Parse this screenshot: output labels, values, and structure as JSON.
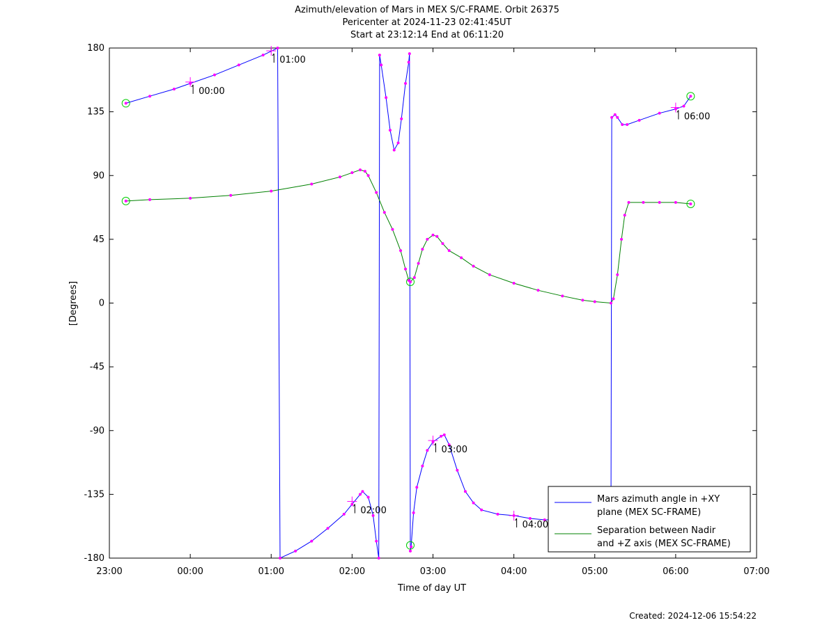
{
  "chart_data": {
    "type": "line",
    "title": [
      "Azimuth/elevation of Mars in MEX S/C-FRAME.  Orbit 26375",
      "Pericenter at 2024-11-23 02:41:45UT",
      "Start at 23:12:14 End at 06:11:20"
    ],
    "xlabel": "Time of day UT",
    "ylabel": "[Degrees]",
    "x_unit": "hours since 23:00 UT",
    "xlim": [
      0,
      8
    ],
    "ylim": [
      -180,
      180
    ],
    "x_tick_labels": [
      "23:00",
      "00:00",
      "01:00",
      "02:00",
      "03:00",
      "04:00",
      "05:00",
      "06:00",
      "07:00"
    ],
    "y_ticks": [
      180,
      135,
      90,
      45,
      0,
      -45,
      -90,
      -135,
      -180
    ],
    "legend": {
      "placement": "bottom-right",
      "entries": [
        {
          "label_lines": [
            "Mars azimuth angle in +XY",
            "plane (MEX SC-FRAME)"
          ],
          "color": "#0000ff"
        },
        {
          "label_lines": [
            "Separation between Nadir",
            "and +Z axis (MEX SC-FRAME)"
          ],
          "color": "#008000"
        }
      ]
    },
    "hour_markers": [
      {
        "label": "00:00",
        "x": 1.0,
        "y": 156
      },
      {
        "label": "01:00",
        "x": 2.0,
        "y": 178
      },
      {
        "label": "02:00",
        "x": 3.0,
        "y": -140
      },
      {
        "label": "03:00",
        "x": 4.0,
        "y": -97
      },
      {
        "label": "04:00",
        "x": 5.0,
        "y": -150
      },
      {
        "label": "06:00",
        "x": 7.0,
        "y": 138
      }
    ],
    "series": [
      {
        "name": "Mars azimuth angle in +XY plane (MEX SC-FRAME)",
        "color": "#0000ff",
        "segments": [
          [
            [
              0.204,
              141
            ],
            [
              0.5,
              146
            ],
            [
              0.8,
              151
            ],
            [
              1.0,
              155
            ],
            [
              1.3,
              161
            ],
            [
              1.6,
              168
            ],
            [
              1.9,
              175
            ],
            [
              2.08,
              180
            ]
          ],
          [
            [
              2.11,
              -180
            ],
            [
              2.3,
              -175
            ],
            [
              2.5,
              -168
            ],
            [
              2.7,
              -159
            ],
            [
              2.9,
              -149
            ],
            [
              3.0,
              -142
            ],
            [
              3.1,
              -135
            ],
            [
              3.13,
              -133
            ],
            [
              3.2,
              -137
            ],
            [
              3.26,
              -150
            ],
            [
              3.3,
              -168
            ],
            [
              3.33,
              -180
            ]
          ],
          [
            [
              3.34,
              175
            ],
            [
              3.36,
              168
            ],
            [
              3.42,
              145
            ],
            [
              3.47,
              122
            ],
            [
              3.52,
              108
            ],
            [
              3.57,
              113
            ],
            [
              3.61,
              130
            ],
            [
              3.66,
              155
            ],
            [
              3.7,
              170
            ],
            [
              3.71,
              176
            ]
          ],
          [
            [
              3.72,
              -175
            ],
            [
              3.73,
              -172
            ],
            [
              3.76,
              -148
            ],
            [
              3.8,
              -130
            ],
            [
              3.87,
              -115
            ],
            [
              3.93,
              -104
            ],
            [
              4.0,
              -98
            ],
            [
              4.1,
              -94
            ],
            [
              4.14,
              -93
            ],
            [
              4.2,
              -100
            ],
            [
              4.3,
              -118
            ],
            [
              4.4,
              -133
            ],
            [
              4.5,
              -141
            ],
            [
              4.6,
              -146
            ],
            [
              4.8,
              -149
            ],
            [
              5.0,
              -150
            ],
            [
              5.2,
              -152
            ],
            [
              5.38,
              -153
            ],
            [
              5.6,
              -153
            ],
            [
              5.8,
              -153
            ],
            [
              6.0,
              -152
            ],
            [
              6.2,
              -150
            ]
          ],
          [
            [
              6.21,
              131
            ],
            [
              6.25,
              133
            ],
            [
              6.28,
              131
            ],
            [
              6.34,
              126
            ],
            [
              6.4,
              126
            ],
            [
              6.55,
              129
            ],
            [
              6.8,
              134
            ],
            [
              7.0,
              137
            ],
            [
              7.1,
              139
            ],
            [
              7.185,
              146
            ]
          ]
        ]
      },
      {
        "name": "Separation between Nadir and +Z axis (MEX SC-FRAME)",
        "color": "#008000",
        "segments": [
          [
            [
              0.204,
              72
            ],
            [
              0.5,
              73
            ],
            [
              1.0,
              74
            ],
            [
              1.5,
              76
            ],
            [
              2.0,
              79
            ],
            [
              2.5,
              84
            ],
            [
              2.85,
              89
            ],
            [
              3.0,
              92
            ],
            [
              3.1,
              94
            ],
            [
              3.16,
              93
            ],
            [
              3.2,
              90
            ],
            [
              3.3,
              78
            ],
            [
              3.4,
              64
            ],
            [
              3.5,
              52
            ],
            [
              3.6,
              37
            ],
            [
              3.66,
              24
            ],
            [
              3.7,
              16
            ],
            [
              3.72,
              15
            ],
            [
              3.77,
              18
            ],
            [
              3.82,
              28
            ],
            [
              3.87,
              38
            ],
            [
              3.93,
              45
            ],
            [
              4.0,
              48
            ],
            [
              4.05,
              47
            ],
            [
              4.12,
              42
            ],
            [
              4.2,
              37
            ],
            [
              4.35,
              32
            ],
            [
              4.5,
              26
            ],
            [
              4.7,
              20
            ],
            [
              5.0,
              14
            ],
            [
              5.3,
              9
            ],
            [
              5.6,
              5
            ],
            [
              5.85,
              2
            ],
            [
              6.0,
              1
            ],
            [
              6.2,
              0
            ],
            [
              6.23,
              3
            ],
            [
              6.28,
              20
            ],
            [
              6.33,
              45
            ],
            [
              6.37,
              62
            ],
            [
              6.42,
              71
            ],
            [
              6.6,
              71
            ],
            [
              6.8,
              71
            ],
            [
              7.0,
              71
            ],
            [
              7.185,
              70
            ]
          ]
        ]
      }
    ],
    "start_end_circles": [
      {
        "x": 0.204,
        "y": 141
      },
      {
        "x": 0.204,
        "y": 72
      },
      {
        "x": 7.185,
        "y": 146
      },
      {
        "x": 7.185,
        "y": 70
      },
      {
        "x": 3.72,
        "y": 15
      },
      {
        "x": 3.72,
        "y": -171
      }
    ],
    "footer": "Created: 2024-12-06 15:54:22"
  }
}
